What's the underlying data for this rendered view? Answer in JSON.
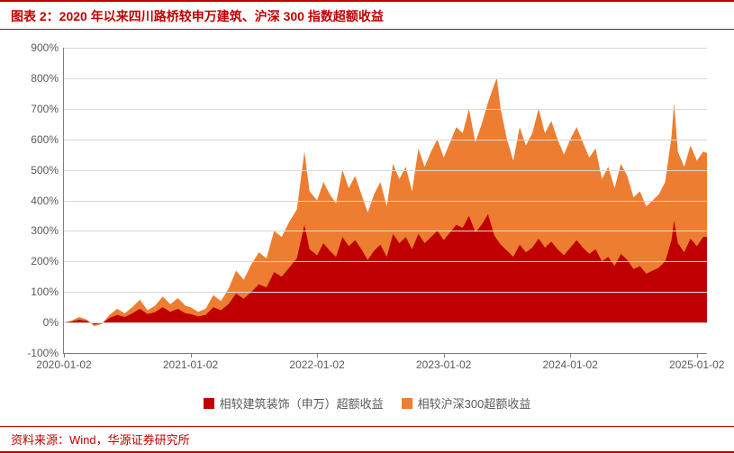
{
  "title": "图表 2：2020 年以来四川路桥较申万建筑、沪深 300 指数超额收益",
  "source": "资料来源：Wind，华源证券研究所",
  "chart": {
    "type": "area",
    "background_color": "#ffffff",
    "grid_color": "#d9d9d9",
    "axis_color": "#808080",
    "text_color": "#595959",
    "title_color": "#c00000",
    "border_color": "#c00000",
    "font_size_axis": 12,
    "font_size_legend": 13,
    "ylim": [
      -100,
      900
    ],
    "ytick_step": 100,
    "yticks": [
      -100,
      0,
      100,
      200,
      300,
      400,
      500,
      600,
      700,
      800,
      900
    ],
    "ytick_format": "%",
    "xlim": [
      0,
      5.08
    ],
    "xticks": [
      {
        "pos": 0.0,
        "label": "2020-01-02"
      },
      {
        "pos": 1.0,
        "label": "2021-01-02"
      },
      {
        "pos": 2.0,
        "label": "2022-01-02"
      },
      {
        "pos": 3.0,
        "label": "2023-01-02"
      },
      {
        "pos": 4.0,
        "label": "2024-01-02"
      },
      {
        "pos": 5.0,
        "label": "2025-01-02"
      }
    ],
    "series": [
      {
        "id": "vs_csi300",
        "label": "相较沪深300超额收益",
        "color": "#ed7d31",
        "z": 1,
        "data": [
          [
            0.0,
            0
          ],
          [
            0.06,
            6
          ],
          [
            0.12,
            18
          ],
          [
            0.18,
            10
          ],
          [
            0.24,
            -12
          ],
          [
            0.3,
            -5
          ],
          [
            0.36,
            25
          ],
          [
            0.42,
            45
          ],
          [
            0.48,
            30
          ],
          [
            0.54,
            50
          ],
          [
            0.6,
            75
          ],
          [
            0.66,
            40
          ],
          [
            0.72,
            55
          ],
          [
            0.78,
            85
          ],
          [
            0.84,
            60
          ],
          [
            0.9,
            80
          ],
          [
            0.96,
            55
          ],
          [
            1.0,
            50
          ],
          [
            1.06,
            35
          ],
          [
            1.12,
            45
          ],
          [
            1.18,
            90
          ],
          [
            1.24,
            70
          ],
          [
            1.3,
            110
          ],
          [
            1.36,
            170
          ],
          [
            1.42,
            140
          ],
          [
            1.48,
            190
          ],
          [
            1.54,
            230
          ],
          [
            1.6,
            210
          ],
          [
            1.66,
            300
          ],
          [
            1.72,
            280
          ],
          [
            1.78,
            330
          ],
          [
            1.84,
            370
          ],
          [
            1.9,
            560
          ],
          [
            1.94,
            430
          ],
          [
            2.0,
            400
          ],
          [
            2.05,
            460
          ],
          [
            2.1,
            420
          ],
          [
            2.15,
            390
          ],
          [
            2.2,
            500
          ],
          [
            2.25,
            440
          ],
          [
            2.3,
            480
          ],
          [
            2.35,
            420
          ],
          [
            2.4,
            360
          ],
          [
            2.45,
            420
          ],
          [
            2.5,
            460
          ],
          [
            2.55,
            380
          ],
          [
            2.6,
            520
          ],
          [
            2.65,
            470
          ],
          [
            2.7,
            510
          ],
          [
            2.75,
            430
          ],
          [
            2.8,
            570
          ],
          [
            2.85,
            510
          ],
          [
            2.9,
            560
          ],
          [
            2.95,
            600
          ],
          [
            3.0,
            540
          ],
          [
            3.05,
            590
          ],
          [
            3.1,
            640
          ],
          [
            3.15,
            620
          ],
          [
            3.2,
            700
          ],
          [
            3.25,
            590
          ],
          [
            3.3,
            650
          ],
          [
            3.35,
            720
          ],
          [
            3.4,
            780
          ],
          [
            3.42,
            800
          ],
          [
            3.45,
            700
          ],
          [
            3.5,
            600
          ],
          [
            3.55,
            530
          ],
          [
            3.6,
            640
          ],
          [
            3.65,
            580
          ],
          [
            3.7,
            620
          ],
          [
            3.75,
            700
          ],
          [
            3.8,
            620
          ],
          [
            3.85,
            660
          ],
          [
            3.9,
            600
          ],
          [
            3.95,
            550
          ],
          [
            4.0,
            600
          ],
          [
            4.05,
            640
          ],
          [
            4.1,
            590
          ],
          [
            4.15,
            540
          ],
          [
            4.2,
            570
          ],
          [
            4.25,
            470
          ],
          [
            4.3,
            510
          ],
          [
            4.35,
            440
          ],
          [
            4.4,
            520
          ],
          [
            4.45,
            480
          ],
          [
            4.5,
            410
          ],
          [
            4.55,
            430
          ],
          [
            4.6,
            380
          ],
          [
            4.65,
            400
          ],
          [
            4.7,
            420
          ],
          [
            4.75,
            460
          ],
          [
            4.8,
            610
          ],
          [
            4.82,
            720
          ],
          [
            4.85,
            560
          ],
          [
            4.9,
            510
          ],
          [
            4.95,
            580
          ],
          [
            5.0,
            530
          ],
          [
            5.05,
            560
          ],
          [
            5.08,
            555
          ]
        ]
      },
      {
        "id": "vs_sw_construction",
        "label": "相较建筑装饰（申万）超额收益",
        "color": "#c00000",
        "z": 2,
        "data": [
          [
            0.0,
            0
          ],
          [
            0.06,
            3
          ],
          [
            0.12,
            9
          ],
          [
            0.18,
            5
          ],
          [
            0.24,
            -6
          ],
          [
            0.3,
            -2
          ],
          [
            0.36,
            15
          ],
          [
            0.42,
            25
          ],
          [
            0.48,
            18
          ],
          [
            0.54,
            30
          ],
          [
            0.6,
            45
          ],
          [
            0.66,
            28
          ],
          [
            0.72,
            34
          ],
          [
            0.78,
            50
          ],
          [
            0.84,
            35
          ],
          [
            0.9,
            45
          ],
          [
            0.96,
            30
          ],
          [
            1.0,
            28
          ],
          [
            1.06,
            20
          ],
          [
            1.12,
            25
          ],
          [
            1.18,
            50
          ],
          [
            1.24,
            40
          ],
          [
            1.3,
            60
          ],
          [
            1.36,
            95
          ],
          [
            1.42,
            78
          ],
          [
            1.48,
            100
          ],
          [
            1.54,
            125
          ],
          [
            1.6,
            115
          ],
          [
            1.66,
            165
          ],
          [
            1.72,
            150
          ],
          [
            1.78,
            180
          ],
          [
            1.84,
            210
          ],
          [
            1.9,
            320
          ],
          [
            1.94,
            240
          ],
          [
            2.0,
            220
          ],
          [
            2.05,
            260
          ],
          [
            2.1,
            235
          ],
          [
            2.15,
            215
          ],
          [
            2.2,
            280
          ],
          [
            2.25,
            250
          ],
          [
            2.3,
            270
          ],
          [
            2.35,
            240
          ],
          [
            2.4,
            205
          ],
          [
            2.45,
            235
          ],
          [
            2.5,
            255
          ],
          [
            2.55,
            215
          ],
          [
            2.6,
            290
          ],
          [
            2.65,
            260
          ],
          [
            2.7,
            280
          ],
          [
            2.75,
            240
          ],
          [
            2.8,
            290
          ],
          [
            2.85,
            260
          ],
          [
            2.9,
            280
          ],
          [
            2.95,
            300
          ],
          [
            3.0,
            270
          ],
          [
            3.05,
            295
          ],
          [
            3.1,
            320
          ],
          [
            3.15,
            310
          ],
          [
            3.2,
            350
          ],
          [
            3.25,
            295
          ],
          [
            3.3,
            320
          ],
          [
            3.35,
            355
          ],
          [
            3.4,
            285
          ],
          [
            3.45,
            255
          ],
          [
            3.5,
            235
          ],
          [
            3.55,
            215
          ],
          [
            3.6,
            255
          ],
          [
            3.65,
            230
          ],
          [
            3.7,
            245
          ],
          [
            3.75,
            275
          ],
          [
            3.8,
            245
          ],
          [
            3.85,
            265
          ],
          [
            3.9,
            240
          ],
          [
            3.95,
            220
          ],
          [
            4.0,
            245
          ],
          [
            4.05,
            270
          ],
          [
            4.1,
            245
          ],
          [
            4.15,
            225
          ],
          [
            4.2,
            240
          ],
          [
            4.25,
            200
          ],
          [
            4.3,
            215
          ],
          [
            4.35,
            185
          ],
          [
            4.4,
            225
          ],
          [
            4.45,
            205
          ],
          [
            4.5,
            175
          ],
          [
            4.55,
            185
          ],
          [
            4.6,
            160
          ],
          [
            4.65,
            170
          ],
          [
            4.7,
            180
          ],
          [
            4.75,
            200
          ],
          [
            4.8,
            270
          ],
          [
            4.82,
            335
          ],
          [
            4.85,
            260
          ],
          [
            4.9,
            230
          ],
          [
            4.95,
            275
          ],
          [
            5.0,
            250
          ],
          [
            5.05,
            280
          ],
          [
            5.08,
            280
          ]
        ]
      }
    ],
    "legend_position": "bottom"
  }
}
